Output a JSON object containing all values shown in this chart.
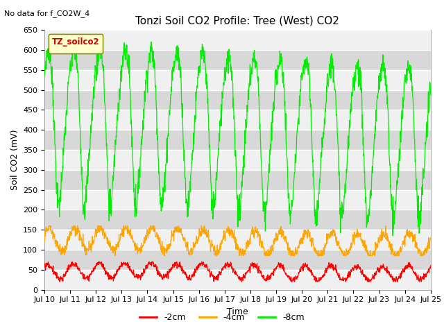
{
  "title": "Tonzi Soil CO2 Profile: Tree (West) CO2",
  "topleft_annotation": "No data for f_CO2W_4",
  "ylabel": "Soil CO2 (mV)",
  "xlabel": "Time",
  "legend_title": "TZ_soilco2",
  "ylim": [
    0,
    650
  ],
  "yticks": [
    0,
    50,
    100,
    150,
    200,
    250,
    300,
    350,
    400,
    450,
    500,
    550,
    600,
    650
  ],
  "series": [
    {
      "label": "-2cm",
      "color": "#ff0000"
    },
    {
      "label": "-4cm",
      "color": "#ffa500"
    },
    {
      "label": "-8cm",
      "color": "#00ee00"
    }
  ],
  "background_color": "#ffffff",
  "plot_bg_color": "#d8d8d8",
  "white_band_color": "#f0f0f0",
  "title_fontsize": 11,
  "axis_fontsize": 9,
  "tick_fontsize": 8,
  "n_days": 15,
  "start_day": 10
}
